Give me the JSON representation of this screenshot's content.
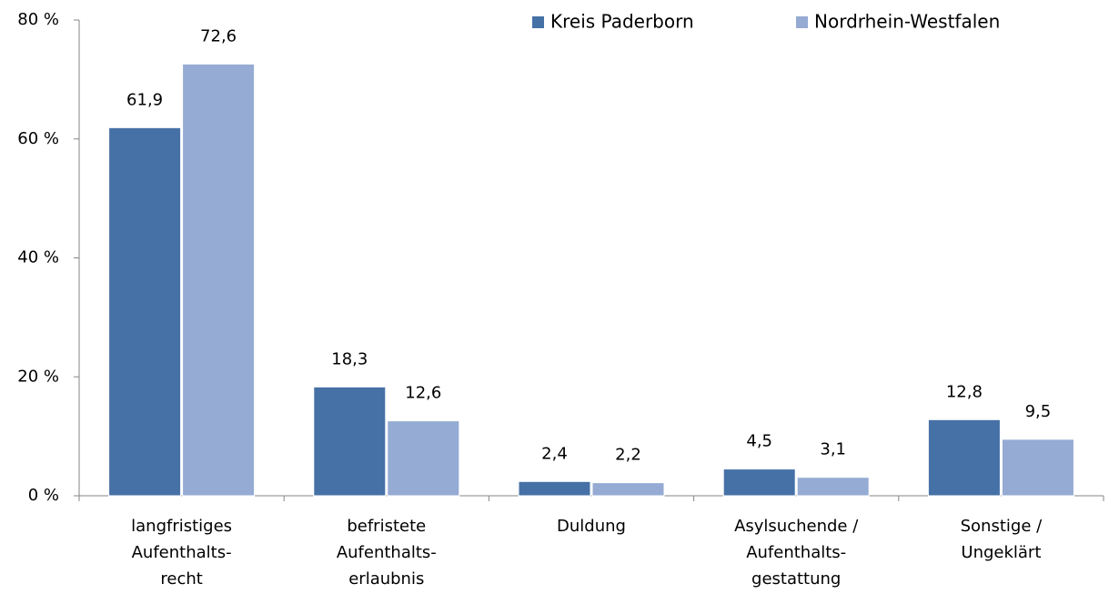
{
  "chart_data": {
    "type": "bar",
    "categories": [
      [
        "langfristiges",
        "Aufenthalts-",
        "recht"
      ],
      [
        "befristete",
        "Aufenthalts-",
        "erlaubnis"
      ],
      [
        "Duldung"
      ],
      [
        "Asylsuchende /",
        "Aufenthalts-",
        "gestattung"
      ],
      [
        "Sonstige /",
        "Ungeklärt"
      ]
    ],
    "series": [
      {
        "name": "Kreis Paderborn",
        "color": "#4671a6",
        "values": [
          61.9,
          18.3,
          2.4,
          4.5,
          12.8
        ],
        "value_labels": [
          "61,9",
          "18,3",
          "2,4",
          "4,5",
          "12,8"
        ]
      },
      {
        "name": "Nordrhein-Westfalen",
        "color": "#95abd3",
        "values": [
          72.6,
          12.6,
          2.2,
          3.1,
          9.5
        ],
        "value_labels": [
          "72,6",
          "12,6",
          "2,2",
          "3,1",
          "9,5"
        ]
      }
    ],
    "ylim": [
      0,
      80
    ],
    "yticks": [
      {
        "value": 0,
        "label": "0 %"
      },
      {
        "value": 20,
        "label": "20 %"
      },
      {
        "value": 40,
        "label": "40 %"
      },
      {
        "value": 60,
        "label": "60 %"
      },
      {
        "value": 80,
        "label": "80 %"
      }
    ],
    "legend": "top"
  }
}
